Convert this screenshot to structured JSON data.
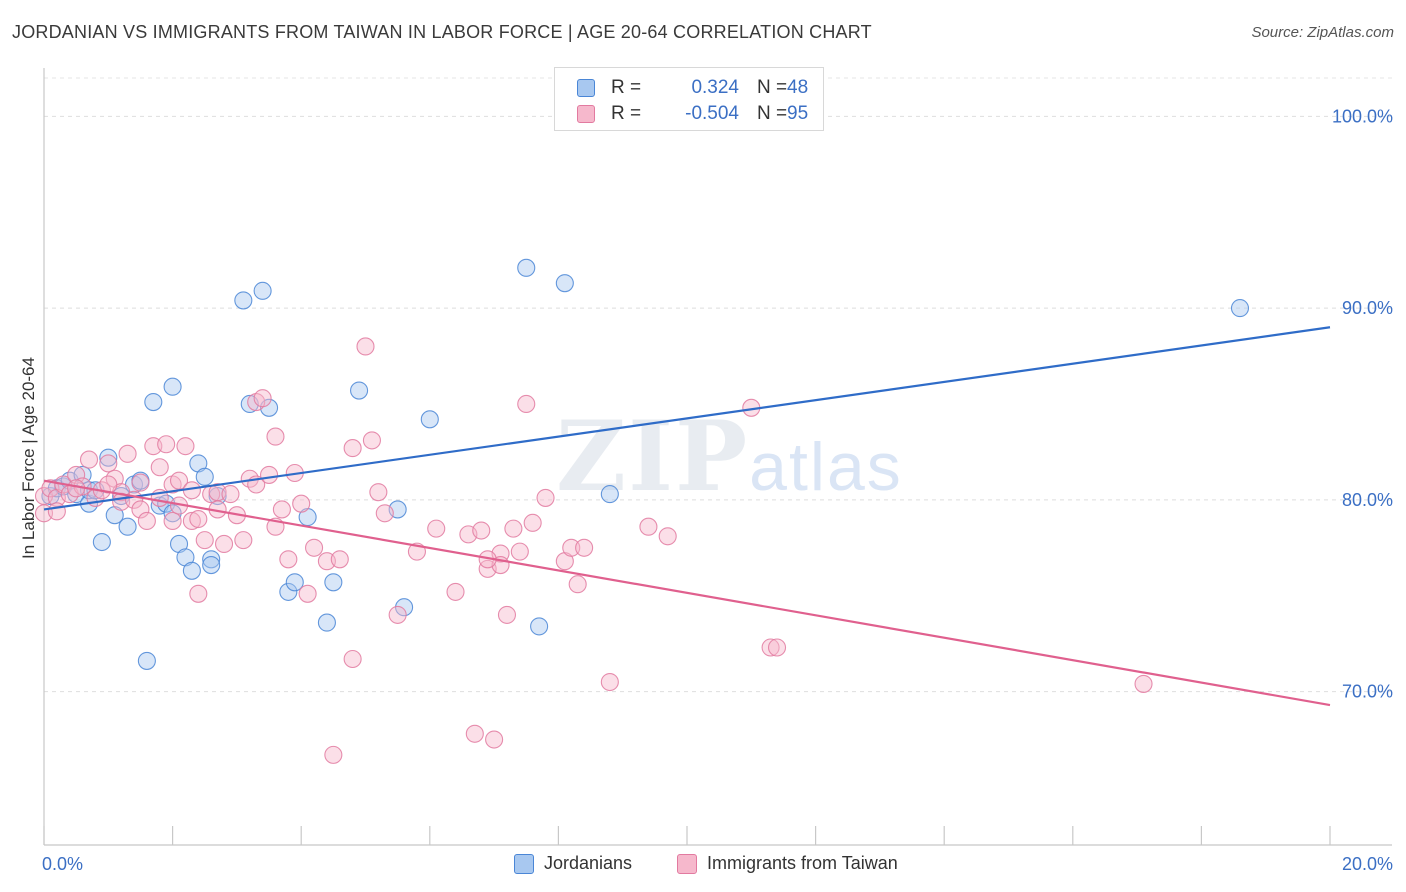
{
  "title": "JORDANIAN VS IMMIGRANTS FROM TAIWAN IN LABOR FORCE | AGE 20-64 CORRELATION CHART",
  "source": "Source: ZipAtlas.com",
  "watermark": {
    "zip": "ZIP",
    "atlas": "atlas"
  },
  "legend": {
    "r_label": "R =",
    "n_label": "N =",
    "series": [
      {
        "name": "Jordanians",
        "r": "0.324",
        "n": "48",
        "color": "#a8c8f0",
        "stroke": "#4a86d6",
        "line": "#2f6cc8"
      },
      {
        "name": "Immigrants from Taiwan",
        "r": "-0.504",
        "n": "95",
        "color": "#f6b8cc",
        "stroke": "#e27aa0",
        "line": "#e0608e"
      }
    ]
  },
  "chart_data": {
    "type": "scatter",
    "title": "JORDANIAN VS IMMIGRANTS FROM TAIWAN IN LABOR FORCE | AGE 20-64 CORRELATION CHART",
    "xlabel": "",
    "ylabel": "In Labor Force | Age 20-64",
    "xlim": [
      0,
      20
    ],
    "ylim": [
      62,
      102
    ],
    "x_tick_labels": [
      {
        "value": 0,
        "label": "0.0%"
      },
      {
        "value": 20,
        "label": "20.0%"
      }
    ],
    "y_tick_labels": [
      {
        "value": 100,
        "label": "100.0%"
      },
      {
        "value": 90,
        "label": "90.0%"
      },
      {
        "value": 80,
        "label": "80.0%"
      },
      {
        "value": 70,
        "label": "70.0%"
      }
    ],
    "series": [
      {
        "name": "Jordanians",
        "trend": {
          "x": [
            0,
            20
          ],
          "y": [
            79.5,
            89.0
          ]
        },
        "points": [
          [
            0.1,
            80.2
          ],
          [
            0.2,
            80.6
          ],
          [
            0.3,
            80.7
          ],
          [
            0.4,
            81.0
          ],
          [
            0.5,
            80.3
          ],
          [
            0.6,
            81.3
          ],
          [
            0.7,
            79.8
          ],
          [
            0.7,
            80.5
          ],
          [
            0.8,
            80.5
          ],
          [
            0.9,
            77.8
          ],
          [
            1.0,
            82.2
          ],
          [
            1.1,
            79.2
          ],
          [
            1.2,
            80.2
          ],
          [
            1.3,
            78.6
          ],
          [
            1.4,
            80.8
          ],
          [
            1.5,
            81.0
          ],
          [
            1.6,
            71.6
          ],
          [
            1.7,
            85.1
          ],
          [
            1.8,
            79.7
          ],
          [
            1.9,
            79.8
          ],
          [
            2.0,
            79.3
          ],
          [
            2.0,
            85.9
          ],
          [
            2.1,
            77.7
          ],
          [
            2.2,
            77.0
          ],
          [
            2.3,
            76.3
          ],
          [
            2.4,
            81.9
          ],
          [
            2.5,
            81.2
          ],
          [
            2.6,
            76.9
          ],
          [
            2.6,
            76.6
          ],
          [
            2.7,
            80.2
          ],
          [
            3.1,
            90.4
          ],
          [
            3.2,
            85.0
          ],
          [
            3.4,
            90.9
          ],
          [
            3.5,
            84.8
          ],
          [
            3.8,
            75.2
          ],
          [
            3.9,
            75.7
          ],
          [
            4.1,
            79.1
          ],
          [
            4.4,
            73.6
          ],
          [
            4.5,
            75.7
          ],
          [
            4.9,
            85.7
          ],
          [
            5.5,
            79.5
          ],
          [
            5.6,
            74.4
          ],
          [
            6.0,
            84.2
          ],
          [
            7.5,
            92.1
          ],
          [
            7.7,
            73.4
          ],
          [
            8.1,
            91.3
          ],
          [
            8.8,
            80.3
          ],
          [
            18.6,
            90.0
          ]
        ]
      },
      {
        "name": "Immigrants from Taiwan",
        "trend": {
          "x": [
            0,
            20
          ],
          "y": [
            81.0,
            69.3
          ]
        },
        "points": [
          [
            0.0,
            79.3
          ],
          [
            0.0,
            80.2
          ],
          [
            0.1,
            80.6
          ],
          [
            0.2,
            80.1
          ],
          [
            0.2,
            79.4
          ],
          [
            0.3,
            80.8
          ],
          [
            0.4,
            80.3
          ],
          [
            0.5,
            81.3
          ],
          [
            0.6,
            80.7
          ],
          [
            0.7,
            82.1
          ],
          [
            0.8,
            80.1
          ],
          [
            0.9,
            80.5
          ],
          [
            1.0,
            81.9
          ],
          [
            1.1,
            81.1
          ],
          [
            1.2,
            80.4
          ],
          [
            1.2,
            79.9
          ],
          [
            1.3,
            82.4
          ],
          [
            1.4,
            80.0
          ],
          [
            1.5,
            79.5
          ],
          [
            1.5,
            80.9
          ],
          [
            1.6,
            78.9
          ],
          [
            1.7,
            82.8
          ],
          [
            1.8,
            80.1
          ],
          [
            1.8,
            81.7
          ],
          [
            1.9,
            82.9
          ],
          [
            2.0,
            78.9
          ],
          [
            2.0,
            80.8
          ],
          [
            2.1,
            79.7
          ],
          [
            2.1,
            81.0
          ],
          [
            2.2,
            82.8
          ],
          [
            2.3,
            78.9
          ],
          [
            2.4,
            75.1
          ],
          [
            2.4,
            79.0
          ],
          [
            2.5,
            77.9
          ],
          [
            2.6,
            80.3
          ],
          [
            2.7,
            79.5
          ],
          [
            2.7,
            80.4
          ],
          [
            2.8,
            77.7
          ],
          [
            2.9,
            80.3
          ],
          [
            3.0,
            79.2
          ],
          [
            3.1,
            77.9
          ],
          [
            3.2,
            81.1
          ],
          [
            3.3,
            80.8
          ],
          [
            3.3,
            85.1
          ],
          [
            3.5,
            81.3
          ],
          [
            3.6,
            78.6
          ],
          [
            3.6,
            83.3
          ],
          [
            3.7,
            79.5
          ],
          [
            3.8,
            76.9
          ],
          [
            3.9,
            81.4
          ],
          [
            4.1,
            75.1
          ],
          [
            4.2,
            77.5
          ],
          [
            4.4,
            76.8
          ],
          [
            4.5,
            66.7
          ],
          [
            4.6,
            76.9
          ],
          [
            4.8,
            82.7
          ],
          [
            4.8,
            71.7
          ],
          [
            5.0,
            88.0
          ],
          [
            5.1,
            83.1
          ],
          [
            5.3,
            79.3
          ],
          [
            5.5,
            74.0
          ],
          [
            5.8,
            77.3
          ],
          [
            6.1,
            78.5
          ],
          [
            6.4,
            75.2
          ],
          [
            6.6,
            78.2
          ],
          [
            6.7,
            67.8
          ],
          [
            6.8,
            78.4
          ],
          [
            6.9,
            76.4
          ],
          [
            7.0,
            67.5
          ],
          [
            7.1,
            77.2
          ],
          [
            7.1,
            76.6
          ],
          [
            7.2,
            74.0
          ],
          [
            7.3,
            78.5
          ],
          [
            7.4,
            77.3
          ],
          [
            7.5,
            85.0
          ],
          [
            7.6,
            78.8
          ],
          [
            8.1,
            76.8
          ],
          [
            8.2,
            77.5
          ],
          [
            8.3,
            75.6
          ],
          [
            8.4,
            77.5
          ],
          [
            8.8,
            70.5
          ],
          [
            9.4,
            78.6
          ],
          [
            9.7,
            78.1
          ],
          [
            11.0,
            84.8
          ],
          [
            11.3,
            72.3
          ],
          [
            11.4,
            72.3
          ],
          [
            17.1,
            70.4
          ],
          [
            0.5,
            80.6
          ],
          [
            1.0,
            80.8
          ],
          [
            2.3,
            80.5
          ],
          [
            3.4,
            85.3
          ],
          [
            5.2,
            80.4
          ],
          [
            6.9,
            76.9
          ],
          [
            7.8,
            80.1
          ],
          [
            4.0,
            79.8
          ]
        ]
      }
    ]
  }
}
